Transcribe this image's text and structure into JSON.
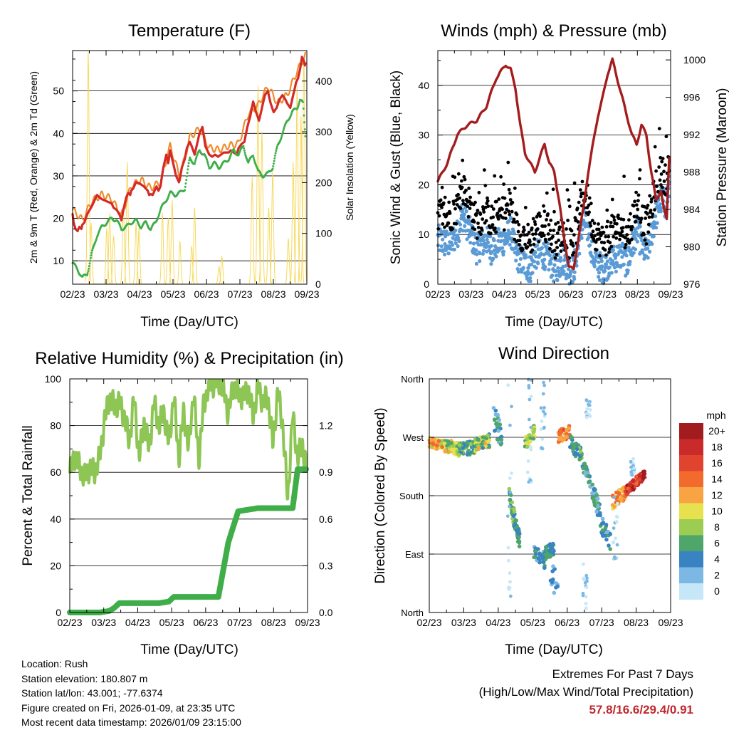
{
  "chart_data": [
    {
      "type": "line",
      "title": "Temperature (F)",
      "xlabel": "Time (Day/UTC)",
      "ylabel": "2m & 9m T (Red, Orange) & 2m Td (Green)",
      "y2label": "Solar Insolation (Yellow)",
      "x_ticks": [
        "02/23",
        "03/23",
        "04/23",
        "05/23",
        "06/23",
        "07/23",
        "08/23",
        "09/23"
      ],
      "ylim": [
        4.5,
        59.5
      ],
      "y_ticks": [
        10,
        20,
        30,
        40,
        50
      ],
      "y2lim": [
        0,
        460
      ],
      "y2_ticks": [
        0,
        100,
        200,
        300,
        400
      ],
      "series": [
        {
          "name": "2m T",
          "color": "#d42a26",
          "x": [
            0,
            0.1,
            0.3,
            0.5,
            0.7,
            0.9,
            1.0,
            1.2,
            1.5,
            2.0,
            2.3,
            2.5,
            2.7,
            3.0,
            3.5,
            4.0,
            4.2,
            4.5,
            4.8,
            5.0,
            5.2,
            5.5,
            5.7,
            5.9,
            6.0,
            6.2,
            6.5,
            6.8,
            7.0,
            7.3,
            7.5,
            7.7,
            7.85,
            8.0,
            8.2,
            8.4,
            8.6,
            8.8,
            9.0,
            9.3,
            9.6,
            9.8,
            10.0,
            10.1,
            10.3,
            10.6,
            10.9,
            11.2,
            11.5,
            11.7,
            12.0,
            12.2,
            12.5,
            12.8,
            13.0,
            13.3,
            13.6,
            14.0,
            14.3,
            14.6,
            14.9,
            15.2,
            15.5,
            15.8,
            16.0,
            16.2,
            16.5,
            16.8,
            17.0,
            17.3,
            17.6,
            17.9,
            18.2,
            18.5,
            18.8,
            19.1,
            19.4,
            19.7,
            20.0,
            20.3,
            20.6,
            20.9,
            21.2,
            21.5,
            21.8,
            22.0,
            22.3,
            22.6,
            22.9,
            23.1,
            23.3,
            23.5,
            23.7,
            23.8,
            23.9
          ],
          "values": [
            21,
            19,
            17.5,
            17,
            18,
            17.5,
            18.5,
            19,
            21,
            23,
            24.5,
            25.5,
            25,
            24.5,
            24,
            23.5,
            22.5,
            22,
            21,
            19.5,
            22,
            25,
            26,
            25.5,
            26.5,
            27,
            28.5,
            28.3,
            28,
            27.5,
            27,
            26.5,
            25.5,
            25.7,
            25.5,
            26.5,
            27.5,
            26.5,
            27.5,
            32,
            35,
            33,
            36,
            35,
            33,
            30,
            28.5,
            32,
            34,
            36.5,
            38,
            37,
            35,
            38,
            40,
            41.5,
            37,
            35,
            34.5,
            35,
            34.5,
            35,
            35.5,
            35.5,
            35.5,
            36,
            35.5,
            35,
            36.5,
            37.5,
            38,
            41.5,
            44,
            47.5,
            45,
            43,
            46,
            49,
            50,
            47,
            45,
            46,
            48,
            49,
            48,
            47,
            46,
            49,
            52,
            53,
            55,
            58,
            57,
            56,
            57
          ]
        },
        {
          "name": "9m T",
          "color": "#f08b2c",
          "x": [
            0,
            1.0,
            2.0,
            3.0,
            4.0,
            5.0,
            6.0,
            7.0,
            8.0,
            9.0,
            10.0,
            11.0,
            12.0,
            13.0,
            14.0,
            15.0,
            16.0,
            17.0,
            18.0,
            19.0,
            20.0,
            21.0,
            22.0,
            23.0,
            23.9
          ],
          "values": [
            21.5,
            19,
            23.5,
            25,
            24,
            20,
            27,
            28.5,
            26.5,
            28,
            36.5,
            29,
            38.5,
            40.5,
            36,
            35.5,
            36.5,
            37,
            44,
            46,
            50.5,
            46.5,
            48.5,
            54,
            58
          ]
        },
        {
          "name": "2m Td",
          "color": "#3fae49",
          "x": [
            0,
            0.5,
            1.0,
            1.5,
            2.0,
            2.5,
            3.0,
            3.5,
            4.0,
            4.5,
            5.0,
            5.5,
            6.0,
            6.5,
            7.0,
            7.5,
            8.0,
            8.5,
            9.0,
            9.5,
            10.0,
            10.5,
            11.0,
            11.5,
            12.0,
            12.5,
            13.0,
            13.5,
            14.0,
            14.5,
            15.0,
            15.5,
            16.0,
            16.5,
            17.0,
            17.5,
            18.0,
            18.5,
            19.0,
            19.5,
            20.0,
            20.5,
            21.0,
            21.5,
            22.0,
            22.5,
            23.0,
            23.3,
            23.6,
            23.9
          ],
          "values": [
            9.5,
            8,
            6,
            7,
            12,
            16,
            18,
            19,
            20,
            19.5,
            17.5,
            18,
            19,
            19.5,
            18,
            19,
            17.5,
            19,
            22,
            24,
            26,
            25.5,
            26,
            27,
            34,
            33,
            36,
            35,
            32,
            33,
            32,
            33,
            34,
            36,
            35,
            37,
            33,
            35,
            31,
            30,
            30.5,
            32,
            37,
            40,
            43,
            45,
            46,
            48,
            47,
            38
          ]
        }
      ]
    },
    {
      "type": "scatter",
      "title": "Winds (mph) & Pressure (mb)",
      "xlabel": "Time (Day/UTC)",
      "ylabel": "Sonic Wind & Gust (Blue, Black)",
      "y2label": "Station Pressure (Maroon)",
      "x_ticks": [
        "02/23",
        "03/23",
        "04/23",
        "05/23",
        "06/23",
        "07/23",
        "08/23",
        "09/23"
      ],
      "ylim": [
        0,
        47
      ],
      "y_ticks": [
        0,
        10,
        20,
        30,
        40
      ],
      "y2lim": [
        976,
        1001
      ],
      "y2_ticks": [
        976,
        980,
        984,
        988,
        992,
        996,
        1000
      ],
      "series": [
        {
          "name": "Station Pressure",
          "color": "#a41d1e",
          "x": [
            0,
            0.5,
            1.0,
            2.0,
            3.0,
            4.0,
            5.0,
            6.0,
            7.0,
            7.5,
            8.0,
            8.5,
            9.0,
            9.5,
            10.0,
            11.0,
            11.5,
            12.0,
            12.5,
            13.0,
            13.5,
            14.0,
            14.5,
            15.0,
            15.5,
            16.0,
            16.5,
            17.0,
            17.5,
            18.0,
            18.5,
            19.0,
            19.5,
            20.0,
            20.5,
            21.0,
            21.5,
            22.0,
            22.5,
            23.0,
            23.3,
            23.6,
            23.9
          ],
          "values": [
            987,
            988,
            989,
            992,
            993,
            993.5,
            995,
            998,
            999.5,
            999,
            997,
            993,
            990,
            989,
            988,
            991,
            989,
            988,
            985,
            981,
            978,
            977.5,
            981,
            984,
            988,
            991,
            994,
            996,
            998.5,
            1000,
            998,
            996,
            994,
            992,
            991,
            993,
            992,
            988,
            985,
            986,
            984,
            983,
            991
          ]
        }
      ]
    },
    {
      "type": "line",
      "title": "Relative Humidity (%) & Precipitation (in)",
      "xlabel": "Time (Day/UTC)",
      "ylabel": "Percent & Total Rainfall",
      "x_ticks": [
        "02/23",
        "03/23",
        "04/23",
        "05/23",
        "06/23",
        "07/23",
        "08/23",
        "09/23"
      ],
      "ylim": [
        0,
        100
      ],
      "y_ticks": [
        0,
        20,
        40,
        60,
        80,
        100
      ],
      "y2lim": [
        0,
        1.5
      ],
      "y2_ticks": [
        "0.0",
        "0.3",
        "0.6",
        "0.9",
        "1.2"
      ],
      "series": [
        {
          "name": "Relative Humidity",
          "color": "#8dc654",
          "x": [
            0,
            0.5,
            1.0,
            1.5,
            2.0,
            2.5,
            3.0,
            3.5,
            4.0,
            4.5,
            5.0,
            5.5,
            6.0,
            6.5,
            7.0,
            7.5,
            8.0,
            8.5,
            9.0,
            9.5,
            10.0,
            10.5,
            11.0,
            11.5,
            12.0,
            12.5,
            13.0,
            13.5,
            14.0,
            14.5,
            15.0,
            15.5,
            16.0,
            16.5,
            17.0,
            17.5,
            18.0,
            18.5,
            19.0,
            19.5,
            20.0,
            20.5,
            21.0,
            21.5,
            22.0,
            22.5,
            23.0,
            23.5,
            23.9
          ],
          "values": [
            60,
            67,
            62,
            58,
            62,
            60,
            66,
            82,
            92,
            88,
            90,
            84,
            73,
            92,
            66,
            82,
            70,
            90,
            80,
            86,
            72,
            93,
            66,
            86,
            70,
            95,
            65,
            88,
            97,
            98,
            99,
            96,
            85,
            97,
            94,
            92,
            96,
            84,
            97,
            90,
            92,
            72,
            95,
            80,
            48,
            85,
            66,
            72,
            61
          ]
        },
        {
          "name": "Total Precipitation",
          "color": "#3fae49",
          "x": [
            0,
            2.0,
            3.0,
            4.0,
            4.5,
            5.0,
            6.0,
            7.0,
            7.5,
            8.0,
            9.0,
            10.0,
            10.5,
            11.0,
            12.0,
            13.0,
            13.5,
            14.0,
            14.5,
            15.0,
            16.0,
            17.0,
            18.0,
            19.0,
            20.0,
            21.0,
            21.5,
            22.0,
            22.5,
            23.0,
            23.5,
            23.9
          ],
          "values": [
            0,
            0,
            0,
            0.01,
            0.03,
            0.06,
            0.06,
            0.06,
            0.06,
            0.06,
            0.06,
            0.07,
            0.1,
            0.1,
            0.1,
            0.1,
            0.1,
            0.1,
            0.1,
            0.1,
            0.45,
            0.65,
            0.66,
            0.67,
            0.67,
            0.67,
            0.67,
            0.67,
            0.67,
            0.92,
            0.92,
            0.92
          ]
        }
      ]
    },
    {
      "type": "scatter",
      "title": "Wind Direction",
      "xlabel": "Time (Day/UTC)",
      "ylabel": "Direction (Colored By Speed)",
      "x_ticks": [
        "02/23",
        "03/23",
        "04/23",
        "05/23",
        "06/23",
        "07/23",
        "08/23",
        "09/23"
      ],
      "y_ticks": [
        "North",
        "East",
        "South",
        "West",
        "North"
      ],
      "ylim": [
        0,
        360
      ],
      "colorbar": {
        "title": "mph",
        "labels": [
          "20+",
          "18",
          "16",
          "14",
          "12",
          "10",
          "8",
          "6",
          "4",
          "2",
          "0"
        ],
        "colors": [
          "#a01c1f",
          "#c92a2a",
          "#e0442e",
          "#f26b2d",
          "#f8a442",
          "#e8e14f",
          "#9ccc52",
          "#4ea66a",
          "#3a83c2",
          "#7cb8e4",
          "#c6e7f8"
        ]
      }
    }
  ],
  "info": {
    "location": "Location: Rush",
    "elevation": "Station elevation: 180.807 m",
    "latlon": "Station lat/lon: 43.001; -77.6374",
    "created": "Figure created on Fri, 2026-01-09, at 23:35 UTC",
    "recent": "Most recent data timestamp: 2026/01/09 23:15:00"
  },
  "extremes": {
    "title": "Extremes For Past 7 Days",
    "subtitle": "(High/Low/Max Wind/Total Precipitation)",
    "values": "57.8/16.6/29.4/0.91"
  }
}
